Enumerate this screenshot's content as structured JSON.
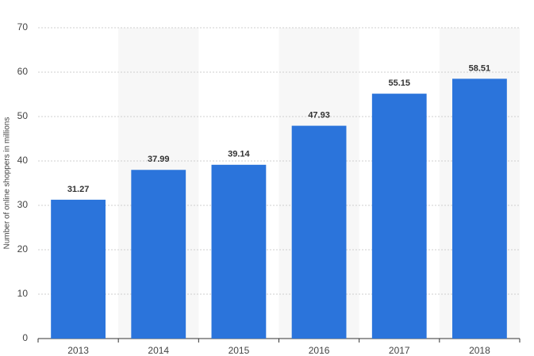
{
  "chart_data": {
    "type": "bar",
    "y_label": "Number of online shoppers in millions",
    "categories": [
      "2013",
      "2014",
      "2015",
      "2016",
      "2017",
      "2018"
    ],
    "values": [
      31.27,
      37.99,
      39.14,
      47.93,
      55.15,
      58.51
    ],
    "color": "#2b74db",
    "ylim": [
      0,
      70
    ],
    "yticks": [
      0,
      10,
      20,
      30,
      40,
      50,
      60,
      70
    ],
    "grid": true
  }
}
